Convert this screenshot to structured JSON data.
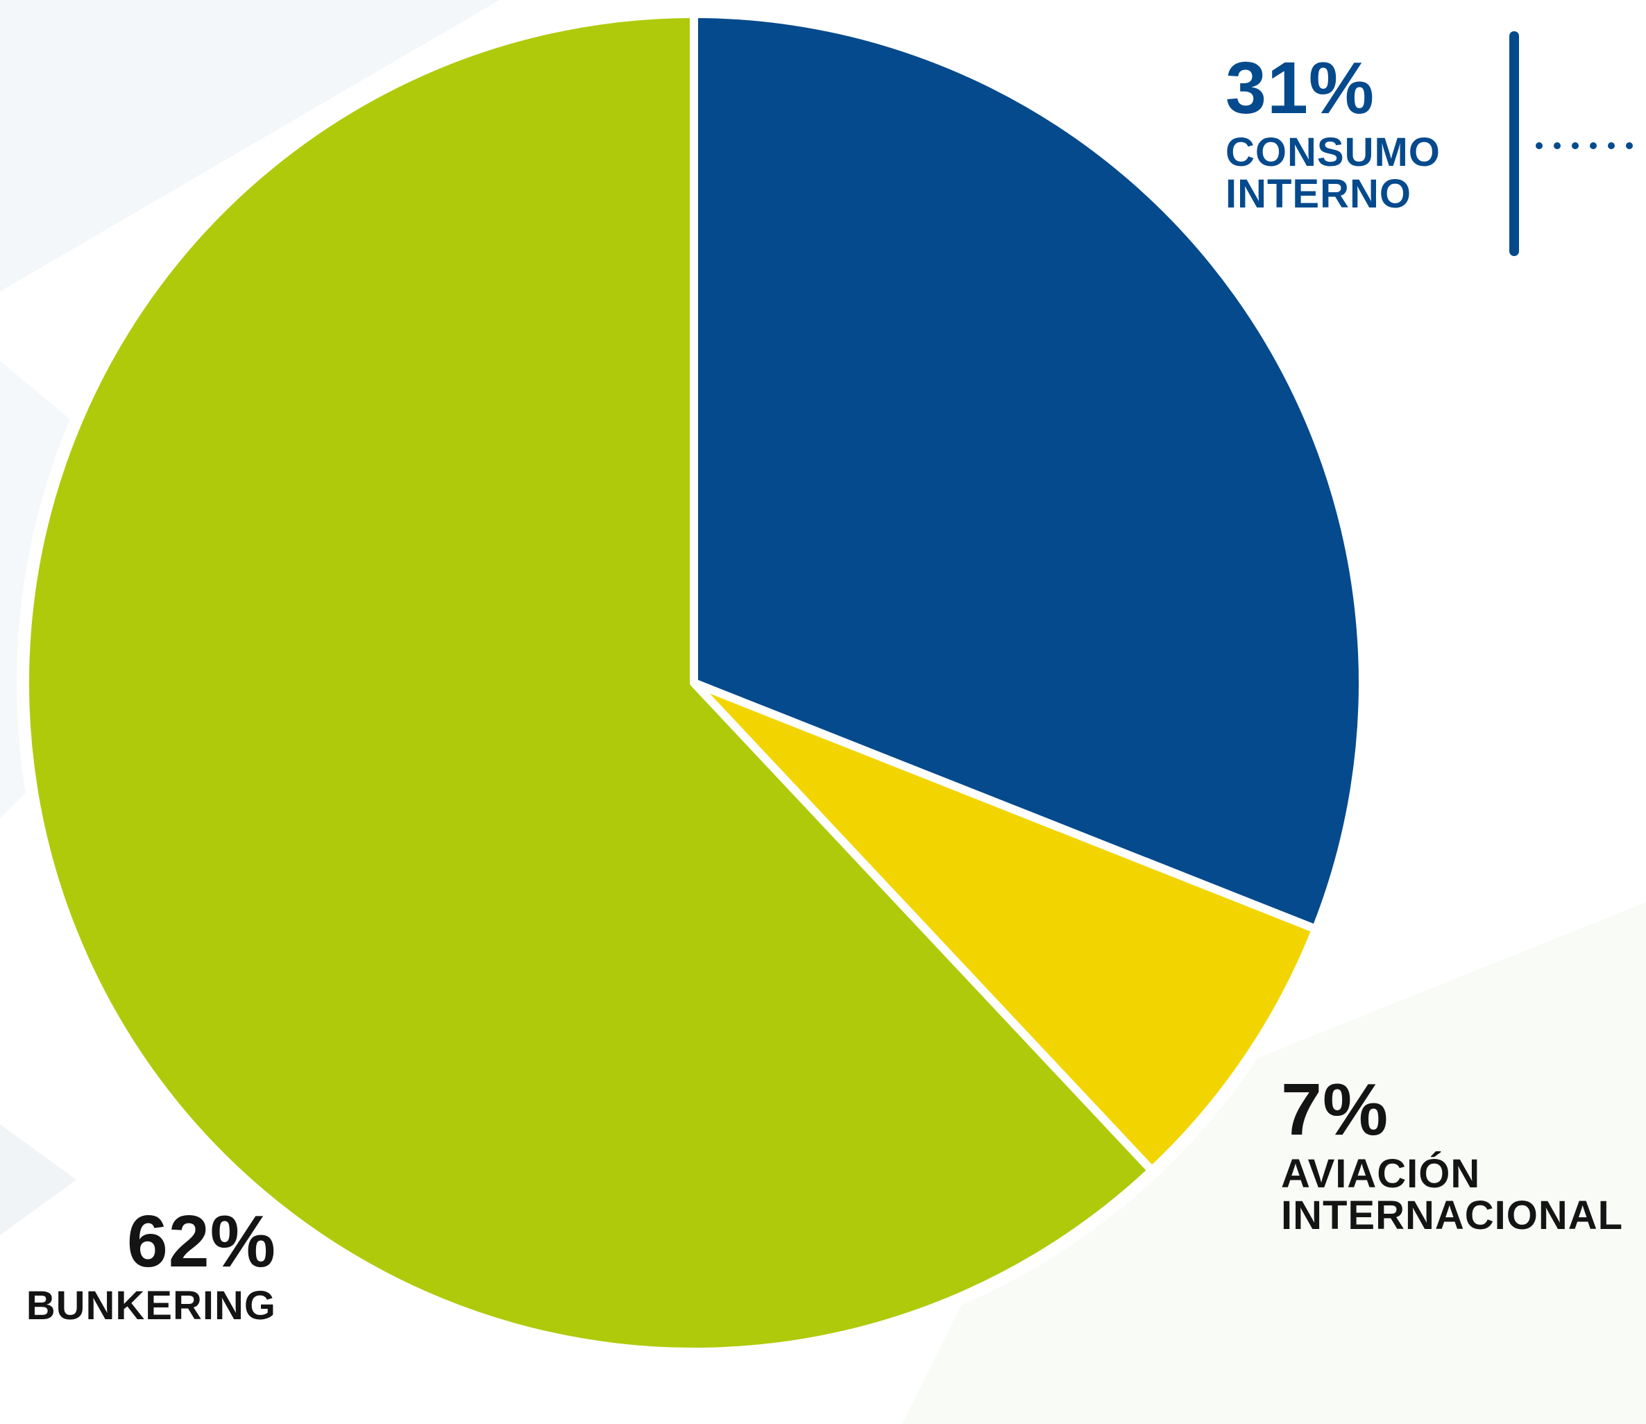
{
  "colors": {
    "consumo_interno": "#054a8c",
    "aviacion_internacional": "#f2d500",
    "bunkering": "#afca0b",
    "separator": "#ffffff",
    "dark_text": "#141414"
  },
  "chart_data": {
    "type": "pie",
    "start_angle_deg": 0,
    "direction": "clockwise",
    "slices": [
      {
        "label": "CONSUMO INTERNO",
        "value": 31,
        "value_label": "31%",
        "color": "#054a8c",
        "label_color": "#054a8c"
      },
      {
        "label": "AVIACIÓN INTERNACIONAL",
        "value": 7,
        "value_label": "7%",
        "color": "#f2d500",
        "label_color": "#141414"
      },
      {
        "label": "BUNKERING",
        "value": 62,
        "value_label": "62%",
        "color": "#afca0b",
        "label_color": "#141414"
      }
    ]
  },
  "labels": {
    "consumo": {
      "percent": "31%",
      "line1": "CONSUMO",
      "line2": "INTERNO"
    },
    "aviacion": {
      "percent": "7%",
      "line1": "AVIACIÓN",
      "line2": "INTERNACIONAL"
    },
    "bunkering": {
      "percent": "62%",
      "line1": "BUNKERING"
    }
  }
}
